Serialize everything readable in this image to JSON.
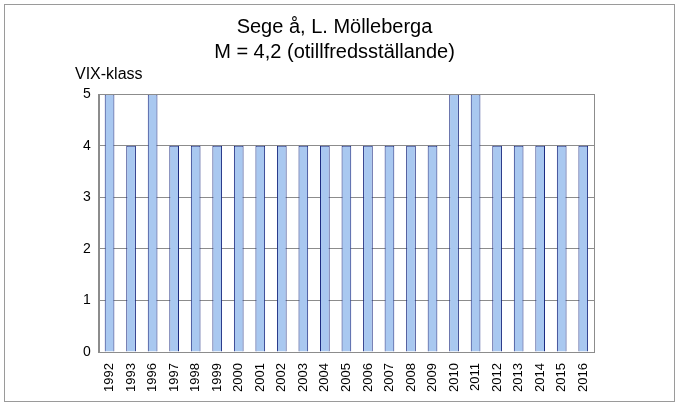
{
  "chart_data": {
    "type": "bar",
    "title": "Sege å, L. Mölleberga",
    "subtitle": "M = 4,2 (otillfredsställande)",
    "ylabel": "VIX-klass",
    "categories": [
      "1992",
      "1993",
      "1996",
      "1997",
      "1998",
      "1999",
      "2000",
      "2001",
      "2002",
      "2003",
      "2004",
      "2005",
      "2006",
      "2007",
      "2008",
      "2009",
      "2010",
      "2011",
      "2012",
      "2013",
      "2014",
      "2015",
      "2016"
    ],
    "values": [
      5,
      4,
      5,
      4,
      4,
      4,
      4,
      4,
      4,
      4,
      4,
      4,
      4,
      4,
      4,
      4,
      5,
      5,
      4,
      4,
      4,
      4,
      4
    ],
    "color": "#a9c8f0",
    "ylim": [
      0,
      5
    ],
    "yticks": [
      0,
      1,
      2,
      3,
      4,
      5
    ],
    "grid": true
  }
}
